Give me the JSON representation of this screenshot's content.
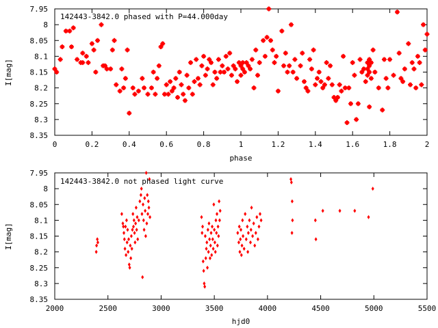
{
  "colors": {
    "points": "#ff0000",
    "axes": "#000000",
    "background": "#ffffff"
  },
  "chart_data": [
    {
      "type": "scatter",
      "title": "142443-3842.0 phased with P=44.000day",
      "xlabel": "phase",
      "ylabel": "I[mag]",
      "xlim": [
        0,
        2
      ],
      "ylim": [
        7.95,
        8.35
      ],
      "y_inverted": true,
      "grid": false,
      "marker": "filled-star",
      "x_ticks": [
        "0",
        "0.2",
        "0.4",
        "0.6",
        "0.8",
        "1",
        "1.2",
        "1.4",
        "1.6",
        "1.8",
        "2"
      ],
      "y_ticks": [
        "7.95",
        "8",
        "8.05",
        "8.1",
        "8.15",
        "8.2",
        "8.25",
        "8.3",
        "8.35"
      ],
      "x_tick_values": [
        0,
        0.2,
        0.4,
        0.6,
        0.8,
        1,
        1.2,
        1.4,
        1.6,
        1.8,
        2
      ],
      "y_tick_values": [
        7.95,
        8,
        8.05,
        8.1,
        8.15,
        8.2,
        8.25,
        8.3,
        8.35
      ],
      "points": [
        [
          0.0,
          8.14
        ],
        [
          0.01,
          8.15
        ],
        [
          0.03,
          8.11
        ],
        [
          0.04,
          8.07
        ],
        [
          0.06,
          8.02
        ],
        [
          0.08,
          8.02
        ],
        [
          0.09,
          8.07
        ],
        [
          0.1,
          8.01
        ],
        [
          0.12,
          8.11
        ],
        [
          0.14,
          8.12
        ],
        [
          0.15,
          8.09
        ],
        [
          0.15,
          8.12
        ],
        [
          0.17,
          8.1
        ],
        [
          0.18,
          8.12
        ],
        [
          0.2,
          8.06
        ],
        [
          0.21,
          8.08
        ],
        [
          0.22,
          8.15
        ],
        [
          0.23,
          8.05
        ],
        [
          0.25,
          8.0
        ],
        [
          0.26,
          8.13
        ],
        [
          0.27,
          8.13
        ],
        [
          0.28,
          8.14
        ],
        [
          0.3,
          8.14
        ],
        [
          0.31,
          8.08
        ],
        [
          0.32,
          8.05
        ],
        [
          0.33,
          8.19
        ],
        [
          0.35,
          8.21
        ],
        [
          0.36,
          8.14
        ],
        [
          0.37,
          8.2
        ],
        [
          0.38,
          8.17
        ],
        [
          0.39,
          8.08
        ],
        [
          0.4,
          8.28
        ],
        [
          0.42,
          8.2
        ],
        [
          0.43,
          8.22
        ],
        [
          0.45,
          8.21
        ],
        [
          0.47,
          8.17
        ],
        [
          0.48,
          8.2
        ],
        [
          0.5,
          8.22
        ],
        [
          0.52,
          8.2
        ],
        [
          0.53,
          8.15
        ],
        [
          0.54,
          8.22
        ],
        [
          0.55,
          8.17
        ],
        [
          0.56,
          8.13
        ],
        [
          0.57,
          8.07
        ],
        [
          0.58,
          8.06
        ],
        [
          0.59,
          8.22
        ],
        [
          0.6,
          8.19
        ],
        [
          0.61,
          8.22
        ],
        [
          0.62,
          8.18
        ],
        [
          0.63,
          8.21
        ],
        [
          0.64,
          8.2
        ],
        [
          0.65,
          8.17
        ],
        [
          0.66,
          8.23
        ],
        [
          0.67,
          8.15
        ],
        [
          0.68,
          8.19
        ],
        [
          0.69,
          8.22
        ],
        [
          0.7,
          8.24
        ],
        [
          0.71,
          8.16
        ],
        [
          0.72,
          8.2
        ],
        [
          0.73,
          8.12
        ],
        [
          0.74,
          8.22
        ],
        [
          0.75,
          8.18
        ],
        [
          0.76,
          8.11
        ],
        [
          0.77,
          8.17
        ],
        [
          0.78,
          8.19
        ],
        [
          0.79,
          8.13
        ],
        [
          0.8,
          8.1
        ],
        [
          0.81,
          8.16
        ],
        [
          0.82,
          8.14
        ],
        [
          0.83,
          8.11
        ],
        [
          0.84,
          8.12
        ],
        [
          0.85,
          8.19
        ],
        [
          0.86,
          8.15
        ],
        [
          0.87,
          8.17
        ],
        [
          0.88,
          8.11
        ],
        [
          0.89,
          8.15
        ],
        [
          0.9,
          8.13
        ],
        [
          0.91,
          8.15
        ],
        [
          0.92,
          8.1
        ],
        [
          0.93,
          8.14
        ],
        [
          0.94,
          8.09
        ],
        [
          0.95,
          8.16
        ],
        [
          0.96,
          8.13
        ],
        [
          0.97,
          8.14
        ],
        [
          0.98,
          8.18
        ],
        [
          0.99,
          8.12
        ],
        [
          1.0,
          8.13
        ],
        [
          1.0,
          8.16
        ],
        [
          1.01,
          8.12
        ],
        [
          1.01,
          8.14
        ],
        [
          1.02,
          8.15
        ],
        [
          1.03,
          8.12
        ],
        [
          1.04,
          8.13
        ],
        [
          1.05,
          8.14
        ],
        [
          1.06,
          8.11
        ],
        [
          1.07,
          8.2
        ],
        [
          1.08,
          8.08
        ],
        [
          1.09,
          8.16
        ],
        [
          1.1,
          8.12
        ],
        [
          1.12,
          8.05
        ],
        [
          1.13,
          8.1
        ],
        [
          1.14,
          8.04
        ],
        [
          1.15,
          7.95
        ],
        [
          1.16,
          8.05
        ],
        [
          1.17,
          8.08
        ],
        [
          1.18,
          8.12
        ],
        [
          1.19,
          8.1
        ],
        [
          1.2,
          8.21
        ],
        [
          1.22,
          8.02
        ],
        [
          1.23,
          8.13
        ],
        [
          1.24,
          8.09
        ],
        [
          1.25,
          8.15
        ],
        [
          1.26,
          8.13
        ],
        [
          1.27,
          8.0
        ],
        [
          1.28,
          8.15
        ],
        [
          1.29,
          8.11
        ],
        [
          1.3,
          8.17
        ],
        [
          1.32,
          8.13
        ],
        [
          1.33,
          8.09
        ],
        [
          1.34,
          8.18
        ],
        [
          1.35,
          8.2
        ],
        [
          1.36,
          8.21
        ],
        [
          1.37,
          8.11
        ],
        [
          1.38,
          8.14
        ],
        [
          1.39,
          8.08
        ],
        [
          1.4,
          8.19
        ],
        [
          1.41,
          8.17
        ],
        [
          1.42,
          8.15
        ],
        [
          1.43,
          8.18
        ],
        [
          1.44,
          8.2
        ],
        [
          1.45,
          8.19
        ],
        [
          1.46,
          8.12
        ],
        [
          1.47,
          8.17
        ],
        [
          1.48,
          8.13
        ],
        [
          1.49,
          8.19
        ],
        [
          1.5,
          8.23
        ],
        [
          1.51,
          8.24
        ],
        [
          1.52,
          8.23
        ],
        [
          1.53,
          8.19
        ],
        [
          1.54,
          8.21
        ],
        [
          1.55,
          8.1
        ],
        [
          1.56,
          8.2
        ],
        [
          1.57,
          8.31
        ],
        [
          1.58,
          8.2
        ],
        [
          1.59,
          8.25
        ],
        [
          1.6,
          8.12
        ],
        [
          1.61,
          8.16
        ],
        [
          1.62,
          8.3
        ],
        [
          1.63,
          8.25
        ],
        [
          1.64,
          8.11
        ],
        [
          1.65,
          8.15
        ],
        [
          1.66,
          8.14
        ],
        [
          1.67,
          8.18
        ],
        [
          1.68,
          8.12
        ],
        [
          1.68,
          8.14
        ],
        [
          1.68,
          8.16
        ],
        [
          1.69,
          8.11
        ],
        [
          1.69,
          8.13
        ],
        [
          1.69,
          8.15
        ],
        [
          1.7,
          8.12
        ],
        [
          1.7,
          8.17
        ],
        [
          1.69,
          8.26
        ],
        [
          1.71,
          8.08
        ],
        [
          1.72,
          8.15
        ],
        [
          1.74,
          8.2
        ],
        [
          1.76,
          8.27
        ],
        [
          1.77,
          8.11
        ],
        [
          1.78,
          8.17
        ],
        [
          1.79,
          8.2
        ],
        [
          1.8,
          8.11
        ],
        [
          1.82,
          8.16
        ],
        [
          1.84,
          7.96
        ],
        [
          1.85,
          8.09
        ],
        [
          1.86,
          8.17
        ],
        [
          1.87,
          8.18
        ],
        [
          1.88,
          8.14
        ],
        [
          1.9,
          8.06
        ],
        [
          1.91,
          8.19
        ],
        [
          1.92,
          8.12
        ],
        [
          1.93,
          8.14
        ],
        [
          1.94,
          8.2
        ],
        [
          1.95,
          8.1
        ],
        [
          1.96,
          8.12
        ],
        [
          1.97,
          8.19
        ],
        [
          1.98,
          8.0
        ],
        [
          1.99,
          8.08
        ],
        [
          2.0,
          8.03
        ]
      ]
    },
    {
      "type": "scatter",
      "title": "142443-3842.0 not phased light curve",
      "xlabel": "hjd0",
      "ylabel": "I[mag]",
      "xlim": [
        2000,
        5500
      ],
      "ylim": [
        7.95,
        8.35
      ],
      "y_inverted": true,
      "grid": false,
      "marker": "small-diamond",
      "x_ticks": [
        "2000",
        "2500",
        "3000",
        "3500",
        "4000",
        "4500",
        "5000",
        "5500"
      ],
      "y_ticks": [
        "7.95",
        "8",
        "8.05",
        "8.1",
        "8.15",
        "8.2",
        "8.25",
        "8.3",
        "8.35"
      ],
      "x_tick_values": [
        2000,
        2500,
        3000,
        3500,
        4000,
        4500,
        5000,
        5500
      ],
      "y_tick_values": [
        7.95,
        8,
        8.05,
        8.1,
        8.15,
        8.2,
        8.25,
        8.3,
        8.35
      ],
      "points": [
        [
          2390,
          8.2
        ],
        [
          2393,
          8.18
        ],
        [
          2400,
          8.16
        ],
        [
          2405,
          8.17
        ],
        [
          2630,
          8.08
        ],
        [
          2640,
          8.11
        ],
        [
          2645,
          8.12
        ],
        [
          2650,
          8.14
        ],
        [
          2655,
          8.16
        ],
        [
          2660,
          8.19
        ],
        [
          2665,
          8.12
        ],
        [
          2670,
          8.21
        ],
        [
          2675,
          8.1
        ],
        [
          2680,
          8.17
        ],
        [
          2685,
          8.13
        ],
        [
          2690,
          8.2
        ],
        [
          2695,
          8.16
        ],
        [
          2700,
          8.24
        ],
        [
          2705,
          8.25
        ],
        [
          2710,
          8.18
        ],
        [
          2715,
          8.22
        ],
        [
          2720,
          8.15
        ],
        [
          2725,
          8.19
        ],
        [
          2730,
          8.13
        ],
        [
          2735,
          8.08
        ],
        [
          2740,
          8.12
        ],
        [
          2745,
          8.1
        ],
        [
          2750,
          8.14
        ],
        [
          2755,
          8.17
        ],
        [
          2760,
          8.11
        ],
        [
          2765,
          8.06
        ],
        [
          2770,
          8.13
        ],
        [
          2775,
          8.09
        ],
        [
          2780,
          8.16
        ],
        [
          2790,
          8.1
        ],
        [
          2800,
          8.04
        ],
        [
          2810,
          8.02
        ],
        [
          2815,
          8.0
        ],
        [
          2820,
          8.08
        ],
        [
          2825,
          8.28
        ],
        [
          2830,
          8.05
        ],
        [
          2835,
          8.1
        ],
        [
          2840,
          8.13
        ],
        [
          2845,
          8.03
        ],
        [
          2850,
          8.07
        ],
        [
          2855,
          8.15
        ],
        [
          2860,
          7.95
        ],
        [
          2865,
          8.11
        ],
        [
          2870,
          8.02
        ],
        [
          2875,
          8.08
        ],
        [
          2880,
          8.04
        ],
        [
          2885,
          8.06
        ],
        [
          2890,
          7.97
        ],
        [
          2895,
          8.09
        ],
        [
          3380,
          8.09
        ],
        [
          3385,
          8.14
        ],
        [
          3390,
          8.12
        ],
        [
          3395,
          8.23
        ],
        [
          3400,
          8.26
        ],
        [
          3405,
          8.3
        ],
        [
          3410,
          8.31
        ],
        [
          3415,
          8.15
        ],
        [
          3420,
          8.22
        ],
        [
          3425,
          8.19
        ],
        [
          3430,
          8.17
        ],
        [
          3435,
          8.25
        ],
        [
          3440,
          8.13
        ],
        [
          3445,
          8.2
        ],
        [
          3450,
          8.11
        ],
        [
          3455,
          8.16
        ],
        [
          3460,
          8.22
        ],
        [
          3465,
          8.18
        ],
        [
          3470,
          8.14
        ],
        [
          3475,
          8.21
        ],
        [
          3480,
          8.12
        ],
        [
          3485,
          8.16
        ],
        [
          3490,
          8.19
        ],
        [
          3495,
          8.05
        ],
        [
          3500,
          8.13
        ],
        [
          3505,
          8.17
        ],
        [
          3510,
          8.2
        ],
        [
          3515,
          8.1
        ],
        [
          3520,
          8.14
        ],
        [
          3525,
          8.08
        ],
        [
          3530,
          8.18
        ],
        [
          3535,
          8.12
        ],
        [
          3540,
          8.15
        ],
        [
          3545,
          8.04
        ],
        [
          3550,
          8.1
        ],
        [
          3555,
          8.07
        ],
        [
          3720,
          8.14
        ],
        [
          3730,
          8.17
        ],
        [
          3735,
          8.12
        ],
        [
          3740,
          8.2
        ],
        [
          3745,
          8.16
        ],
        [
          3750,
          8.13
        ],
        [
          3755,
          8.21
        ],
        [
          3760,
          8.18
        ],
        [
          3765,
          8.1
        ],
        [
          3770,
          8.15
        ],
        [
          3780,
          8.19
        ],
        [
          3790,
          8.08
        ],
        [
          3800,
          8.16
        ],
        [
          3810,
          8.12
        ],
        [
          3815,
          8.2
        ],
        [
          3820,
          8.14
        ],
        [
          3830,
          8.1
        ],
        [
          3840,
          8.17
        ],
        [
          3845,
          8.13
        ],
        [
          3850,
          8.06
        ],
        [
          3860,
          8.15
        ],
        [
          3870,
          8.11
        ],
        [
          3880,
          8.18
        ],
        [
          3890,
          8.14
        ],
        [
          3900,
          8.09
        ],
        [
          3910,
          8.16
        ],
        [
          3920,
          8.12
        ],
        [
          3930,
          8.08
        ],
        [
          3940,
          8.1
        ],
        [
          4220,
          7.97
        ],
        [
          4225,
          7.98
        ],
        [
          4230,
          8.14
        ],
        [
          4232,
          8.04
        ],
        [
          4235,
          8.1
        ],
        [
          4450,
          8.1
        ],
        [
          4455,
          8.16
        ],
        [
          4520,
          8.07
        ],
        [
          4680,
          8.07
        ],
        [
          4820,
          8.07
        ],
        [
          4950,
          8.09
        ],
        [
          4990,
          8.0
        ]
      ]
    }
  ]
}
